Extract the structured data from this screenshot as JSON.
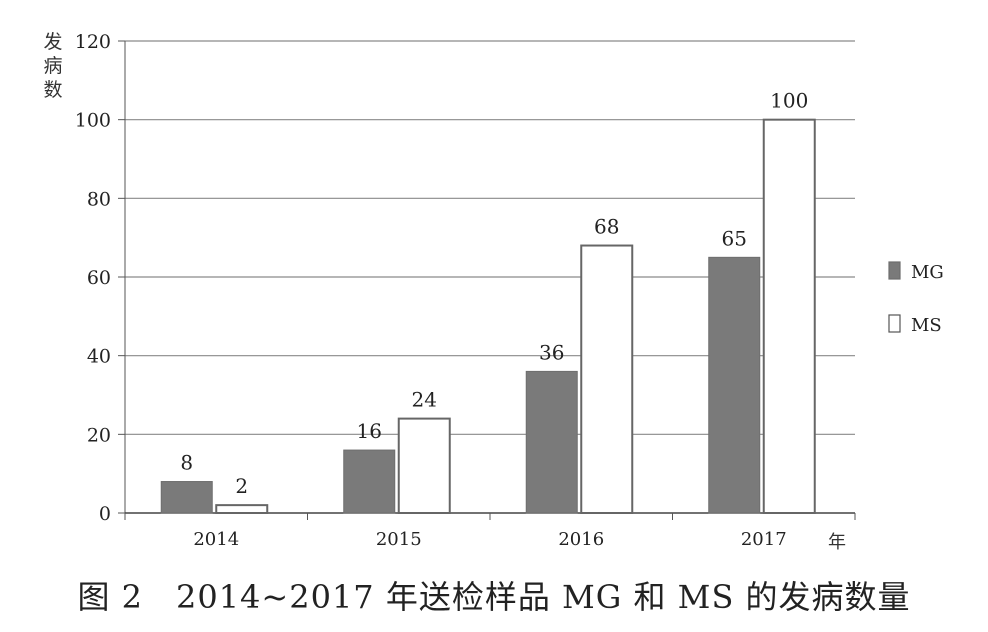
{
  "caption": "图 2　2014~2017 年送检样品 MG 和 MS 的发病数量",
  "chart_data": {
    "type": "bar",
    "categories": [
      "2014",
      "2015",
      "2016",
      "2017"
    ],
    "series": [
      {
        "name": "MG",
        "values": [
          8,
          16,
          36,
          65
        ],
        "color": "#7a7a7a"
      },
      {
        "name": "MS",
        "values": [
          2,
          24,
          68,
          100
        ],
        "color": "#ffffff"
      }
    ],
    "xlabel": "年",
    "ylabel": "发病数",
    "ylim": [
      0,
      120
    ],
    "yticks": [
      0,
      20,
      40,
      60,
      80,
      100,
      120
    ],
    "grid": true,
    "legend": "right"
  }
}
